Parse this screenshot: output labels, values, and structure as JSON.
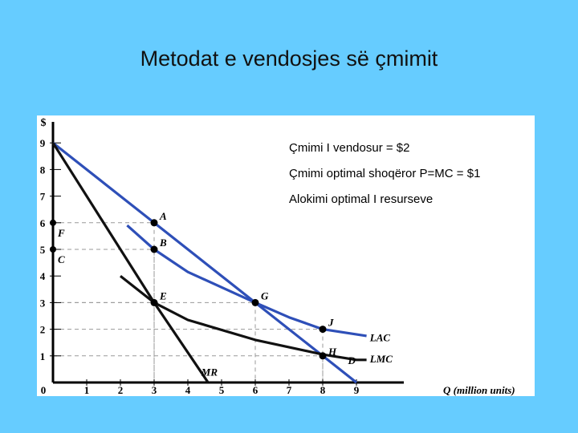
{
  "slide": {
    "title": "Metodat e vendosjes së çmimit"
  },
  "annotations": [
    "Çmimi I vendosur  = $2",
    "Çmimi optimal shoqëror P=MC = $1",
    "Alokimi optimal I resurseve"
  ],
  "colors": {
    "background": "#66ccff",
    "blue_curves": "#2e4fb8",
    "black_curves": "#111111",
    "guides": "#999999"
  },
  "chart_data": {
    "type": "line",
    "ylabel": "$",
    "xlabel": "Q (million units)",
    "xlim": [
      0,
      10.5
    ],
    "ylim": [
      0,
      9.5
    ],
    "x_ticks": [
      0,
      1,
      2,
      3,
      4,
      5,
      6,
      7,
      8,
      9
    ],
    "y_ticks": [
      1,
      2,
      3,
      4,
      5,
      6,
      7,
      8,
      9
    ],
    "series": [
      {
        "name": "D",
        "color": "#2e4fb8",
        "points": [
          [
            0,
            9
          ],
          [
            3,
            6
          ],
          [
            6,
            3
          ],
          [
            8,
            1
          ],
          [
            9,
            0
          ]
        ]
      },
      {
        "name": "LAC",
        "color": "#2e4fb8",
        "points": [
          [
            2.2,
            5.9
          ],
          [
            3,
            5
          ],
          [
            4,
            4.15
          ],
          [
            6,
            3
          ],
          [
            7,
            2.45
          ],
          [
            8,
            2
          ],
          [
            9.3,
            1.75
          ]
        ]
      },
      {
        "name": "MR",
        "color": "#111111",
        "points": [
          [
            0,
            9
          ],
          [
            3,
            3
          ],
          [
            4.6,
            0
          ]
        ]
      },
      {
        "name": "LMC",
        "color": "#111111",
        "points": [
          [
            2,
            4
          ],
          [
            3,
            3
          ],
          [
            4,
            2.35
          ],
          [
            6,
            1.6
          ],
          [
            8,
            1.05
          ],
          [
            9,
            0.85
          ],
          [
            9.3,
            0.85
          ]
        ]
      }
    ],
    "points": [
      {
        "label": "A",
        "x": 3,
        "y": 6
      },
      {
        "label": "B",
        "x": 3,
        "y": 5
      },
      {
        "label": "E",
        "x": 3,
        "y": 3
      },
      {
        "label": "G",
        "x": 6,
        "y": 3
      },
      {
        "label": "J",
        "x": 8,
        "y": 2
      },
      {
        "label": "H",
        "x": 8,
        "y": 1
      }
    ],
    "axis_markers": [
      {
        "label": "F",
        "y": 6
      },
      {
        "label": "C",
        "y": 5
      }
    ],
    "grid": false,
    "legend": "inline labels at curve ends"
  }
}
